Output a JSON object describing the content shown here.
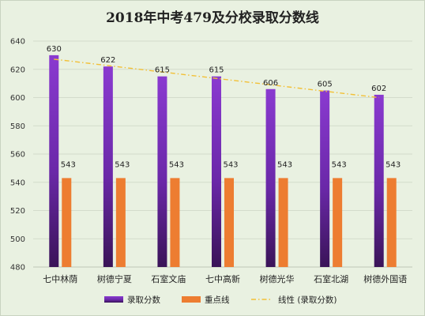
{
  "chart_data": {
    "type": "bar",
    "title": "2018年中考479及分校录取分数线",
    "categories": [
      "七中林荫",
      "树德宁夏",
      "石室文庙",
      "七中高新",
      "树德光华",
      "石室北湖",
      "树德外国语"
    ],
    "series": [
      {
        "name": "录取分数",
        "type": "bar",
        "values": [
          630,
          622,
          615,
          615,
          606,
          605,
          602
        ],
        "color": "#7030a0"
      },
      {
        "name": "重点线",
        "type": "bar",
        "values": [
          543,
          543,
          543,
          543,
          543,
          543,
          543
        ],
        "color": "#ed7d31"
      },
      {
        "name": "线性 (录取分数)",
        "type": "trendline",
        "of": "录取分数",
        "style": "dash-dot",
        "color": "#f2c037"
      }
    ],
    "ylim": [
      480,
      640
    ],
    "yticks": [
      480,
      500,
      520,
      540,
      560,
      580,
      600,
      620,
      640
    ],
    "grid": true,
    "legend": "bottom",
    "data_labels": true
  }
}
